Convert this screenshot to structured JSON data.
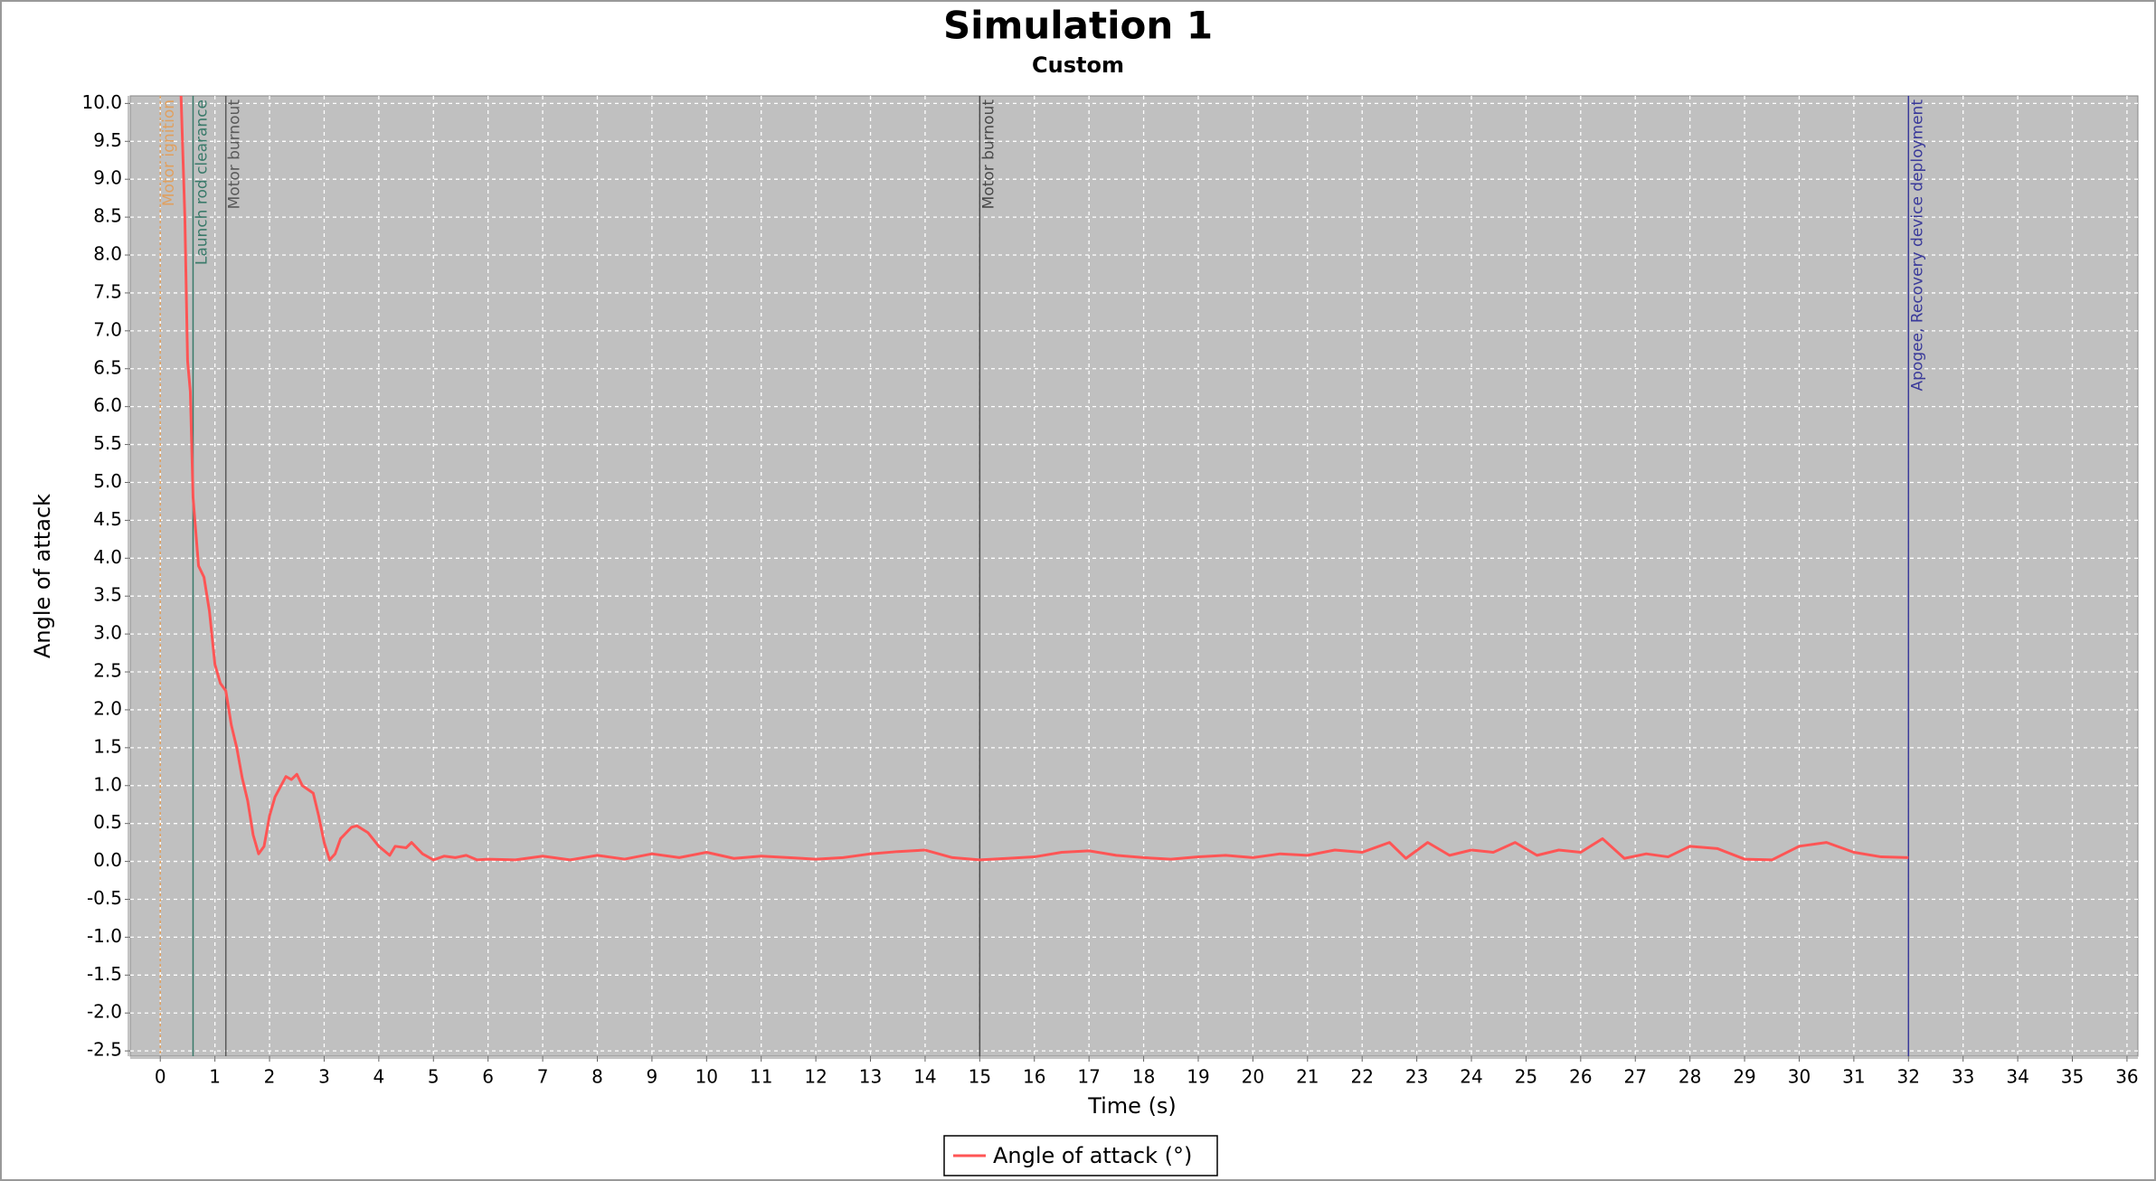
{
  "chart_data": {
    "type": "line",
    "title": "Simulation 1",
    "subtitle": "Custom",
    "x_label": "Time (s)",
    "y_label": "Angle of attack",
    "xlim": [
      -0.55,
      36.2
    ],
    "ylim": [
      -2.57,
      10.1
    ],
    "xticks": [
      0,
      1,
      2,
      3,
      4,
      5,
      6,
      7,
      8,
      9,
      10,
      11,
      12,
      13,
      14,
      15,
      16,
      17,
      18,
      19,
      20,
      21,
      22,
      23,
      24,
      25,
      26,
      27,
      28,
      29,
      30,
      31,
      32,
      33,
      34,
      35,
      36
    ],
    "yticks": [
      {
        "value": -2.5,
        "label": "-2.5"
      },
      {
        "value": -2,
        "label": "-2.0"
      },
      -1.5,
      {
        "value": -1,
        "label": "-1.0"
      },
      -0.5,
      {
        "value": 0,
        "label": "0.0"
      },
      0.5,
      {
        "value": 1,
        "label": "1.0"
      },
      1.5,
      {
        "value": 2,
        "label": "2.0"
      },
      2.5,
      {
        "value": 3,
        "label": "3.0"
      },
      3.5,
      {
        "value": 4,
        "label": "4.0"
      },
      4.5,
      {
        "value": 5,
        "label": "5.0"
      },
      5.5,
      {
        "value": 6,
        "label": "6.0"
      },
      6.5,
      {
        "value": 7,
        "label": "7.0"
      },
      7.5,
      {
        "value": 8,
        "label": "8.0"
      },
      8.5,
      {
        "value": 9,
        "label": "9.0"
      },
      9.5,
      {
        "value": 10,
        "label": "10.0"
      }
    ],
    "grid": true,
    "legend": "bottom",
    "events": [
      {
        "label": "Motor ignition",
        "x": 0,
        "color": "#e0a060"
      },
      {
        "label": "Launch rod clearance",
        "x": 0.6,
        "color": "#3a7a6a"
      },
      {
        "label": "Motor burnout",
        "x": 1.2,
        "color": "#5a5a5a"
      },
      {
        "label": "Motor burnout",
        "x": 15,
        "color": "#4a4a4a"
      },
      {
        "label": "Apogee, Recovery device deployment",
        "x": 32,
        "color": "#3a3a9a"
      }
    ],
    "x": [
      0.38,
      0.45,
      0.5,
      0.55,
      0.6,
      0.7,
      0.8,
      0.9,
      1.0,
      1.1,
      1.2,
      1.3,
      1.4,
      1.5,
      1.6,
      1.7,
      1.8,
      1.9,
      2.0,
      2.1,
      2.3,
      2.4,
      2.5,
      2.6,
      2.8,
      2.9,
      3.0,
      3.1,
      3.2,
      3.3,
      3.5,
      3.6,
      3.8,
      4.0,
      4.2,
      4.3,
      4.5,
      4.6,
      4.8,
      5.0,
      5.2,
      5.4,
      5.6,
      5.8,
      6.0,
      6.5,
      7,
      7.5,
      8,
      8.5,
      9,
      9.5,
      10,
      10.5,
      11,
      11.5,
      12,
      12.5,
      13,
      13.5,
      14,
      14.5,
      15,
      15.5,
      16,
      16.5,
      17,
      17.5,
      18,
      18.5,
      19,
      19.5,
      20,
      20.5,
      21,
      21.5,
      22,
      22.5,
      22.8,
      23.2,
      23.6,
      24,
      24.4,
      24.8,
      25.2,
      25.6,
      26,
      26.4,
      26.8,
      27.2,
      27.6,
      28,
      28.5,
      29,
      29.5,
      30,
      30.5,
      31,
      31.5,
      32
    ],
    "series": [
      {
        "name": "Angle of attack (°)",
        "color": "#ff5555",
        "values": [
          10.1,
          8.5,
          6.6,
          6.2,
          4.8,
          3.9,
          3.75,
          3.3,
          2.6,
          2.35,
          2.25,
          1.8,
          1.5,
          1.1,
          0.8,
          0.35,
          0.1,
          0.2,
          0.6,
          0.85,
          1.12,
          1.08,
          1.15,
          1.0,
          0.9,
          0.6,
          0.25,
          0.02,
          0.1,
          0.3,
          0.45,
          0.47,
          0.38,
          0.2,
          0.08,
          0.2,
          0.18,
          0.25,
          0.1,
          0.02,
          0.07,
          0.05,
          0.08,
          0.02,
          0.03,
          0.02,
          0.07,
          0.02,
          0.08,
          0.03,
          0.1,
          0.05,
          0.12,
          0.04,
          0.07,
          0.05,
          0.03,
          0.05,
          0.1,
          0.13,
          0.15,
          0.05,
          0.02,
          0.04,
          0.06,
          0.12,
          0.14,
          0.08,
          0.05,
          0.03,
          0.06,
          0.08,
          0.05,
          0.1,
          0.08,
          0.15,
          0.12,
          0.25,
          0.04,
          0.25,
          0.08,
          0.15,
          0.12,
          0.25,
          0.08,
          0.15,
          0.12,
          0.3,
          0.04,
          0.1,
          0.06,
          0.2,
          0.17,
          0.03,
          0.02,
          0.2,
          0.25,
          0.12,
          0.06,
          0.05
        ]
      }
    ]
  }
}
